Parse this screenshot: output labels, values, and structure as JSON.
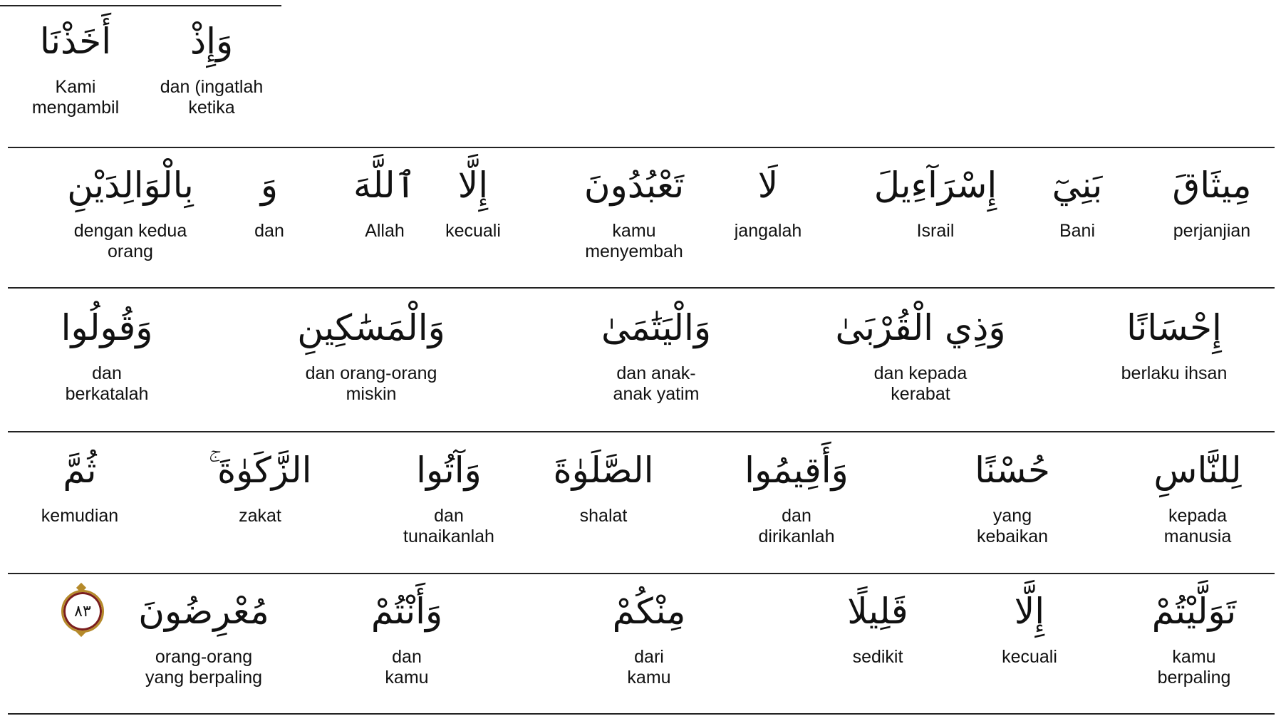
{
  "rows": [
    [
      {
        "arabic": "وَإِذْ",
        "translation": "dan (ingatlah\nketika"
      },
      {
        "arabic": "أَخَذْنَا",
        "translation": "Kami\nmengambil"
      }
    ],
    [
      {
        "arabic": "مِيثَاقَ",
        "translation": "perjanjian"
      },
      {
        "arabic": "بَنِيٓ",
        "translation": "Bani"
      },
      {
        "arabic": "إِسْرَآءِيلَ",
        "translation": "Israil"
      },
      {
        "arabic": "لَا",
        "translation": "jangalah"
      },
      {
        "arabic": "تَعْبُدُونَ",
        "translation": "kamu\nmenyembah"
      },
      {
        "arabic": "إِلَّا",
        "translation": "kecuali"
      },
      {
        "arabic": "ٱللَّهَ",
        "translation": "Allah"
      },
      {
        "arabic": "وَ",
        "translation": "dan"
      },
      {
        "arabic": "بِالْوَالِدَيْنِ",
        "translation": "dengan kedua\norang"
      }
    ],
    [
      {
        "arabic": "إِحْسَانًا",
        "translation": "berlaku ihsan"
      },
      {
        "arabic": "وَذِي الْقُرْبَىٰ",
        "translation": "dan kepada\nkerabat"
      },
      {
        "arabic": "وَالْيَتَٰمَىٰ",
        "translation": "dan anak-\nanak yatim"
      },
      {
        "arabic": "وَالْمَسَٰكِينِ",
        "translation": "dan orang-orang\nmiskin"
      },
      {
        "arabic": "وَقُولُوا",
        "translation": "dan\nberkatalah"
      }
    ],
    [
      {
        "arabic": "لِلنَّاسِ",
        "translation": "kepada\nmanusia"
      },
      {
        "arabic": "حُسْنًا",
        "translation": "yang\nkebaikan"
      },
      {
        "arabic": "وَأَقِيمُوا",
        "translation": "dan\ndirikanlah"
      },
      {
        "arabic": "الصَّلَوٰةَ",
        "translation": "shalat"
      },
      {
        "arabic": "وَآتُوا",
        "translation": "dan\ntunaikanlah"
      },
      {
        "arabic": "الزَّكَوٰةَ ۚ",
        "translation": "zakat"
      },
      {
        "arabic": "ثُمَّ",
        "translation": "kemudian"
      }
    ],
    [
      {
        "arabic": "تَوَلَّيْتُمْ",
        "translation": "kamu\nberpaling"
      },
      {
        "arabic": "إِلَّا",
        "translation": "kecuali"
      },
      {
        "arabic": "قَلِيلًا",
        "translation": "sedikit"
      },
      {
        "arabic": "مِنْكُمْ",
        "translation": "dari\nkamu"
      },
      {
        "arabic": "وَأَنْتُمْ",
        "translation": "dan\nkamu"
      },
      {
        "arabic": "مُعْرِضُونَ",
        "translation": "orang-orang\nyang berpaling"
      }
    ]
  ],
  "verse_number": "٨٣"
}
